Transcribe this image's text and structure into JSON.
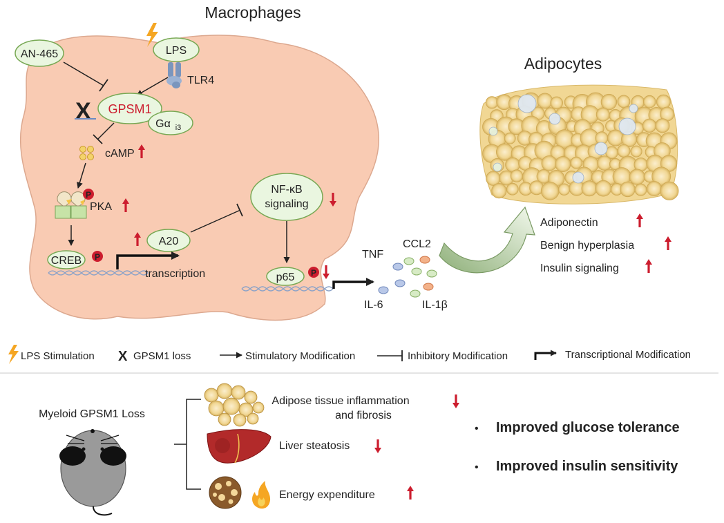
{
  "titles": {
    "macrophages": "Macrophages",
    "adipocytes": "Adipocytes"
  },
  "nodes": {
    "an465": "AN-465",
    "lps": "LPS",
    "tlr4": "TLR4",
    "gpsm1": "GPSM1",
    "gai3_main": "Gα",
    "gai3_sub": "i3",
    "camp": "cAMP",
    "pka": "PKA",
    "p_badge": "P",
    "creb": "CREB",
    "a20": "A20",
    "nfkb_line1": "NF-κB",
    "nfkb_line2": "signaling",
    "p65": "p65",
    "transcription": "transcription"
  },
  "cytokines": [
    "TNF",
    "CCL2",
    "IL-6",
    "IL-1β"
  ],
  "adipocyte_effects": [
    "Adiponectin",
    "Benign hyperplasia",
    "Insulin signaling"
  ],
  "legend": {
    "lps": "LPS Stimulation",
    "gpsm1": "GPSM1 loss",
    "stim": "Stimulatory Modification",
    "inhib": "Inhibitory Modification",
    "transc": "Transcriptional Modification"
  },
  "bottom": {
    "mouse_label": "Myeloid GPSM1 Loss",
    "effects": [
      "Adipose tissue inflammation",
      "and fibrosis",
      "Liver steatosis",
      "Energy expenditure"
    ],
    "outcomes": [
      "Improved glucose tolerance",
      "Improved insulin sensitivity"
    ],
    "bullet": "•"
  },
  "colors": {
    "cell_fill": "#f9cbb3",
    "cell_stroke": "#dca88f",
    "node_fill": "#eaf6e0",
    "node_stroke": "#77a853",
    "red": "#cc1d2e",
    "adipo_fill": "#f4dca3",
    "dna": "#8aa2c8"
  },
  "icons": [
    "lightning-icon",
    "x-mark-icon",
    "phospho-icon",
    "up-arrow-icon",
    "down-arrow-icon",
    "mouse-icon",
    "liver-icon",
    "fire-icon",
    "curved-arrow-icon"
  ]
}
